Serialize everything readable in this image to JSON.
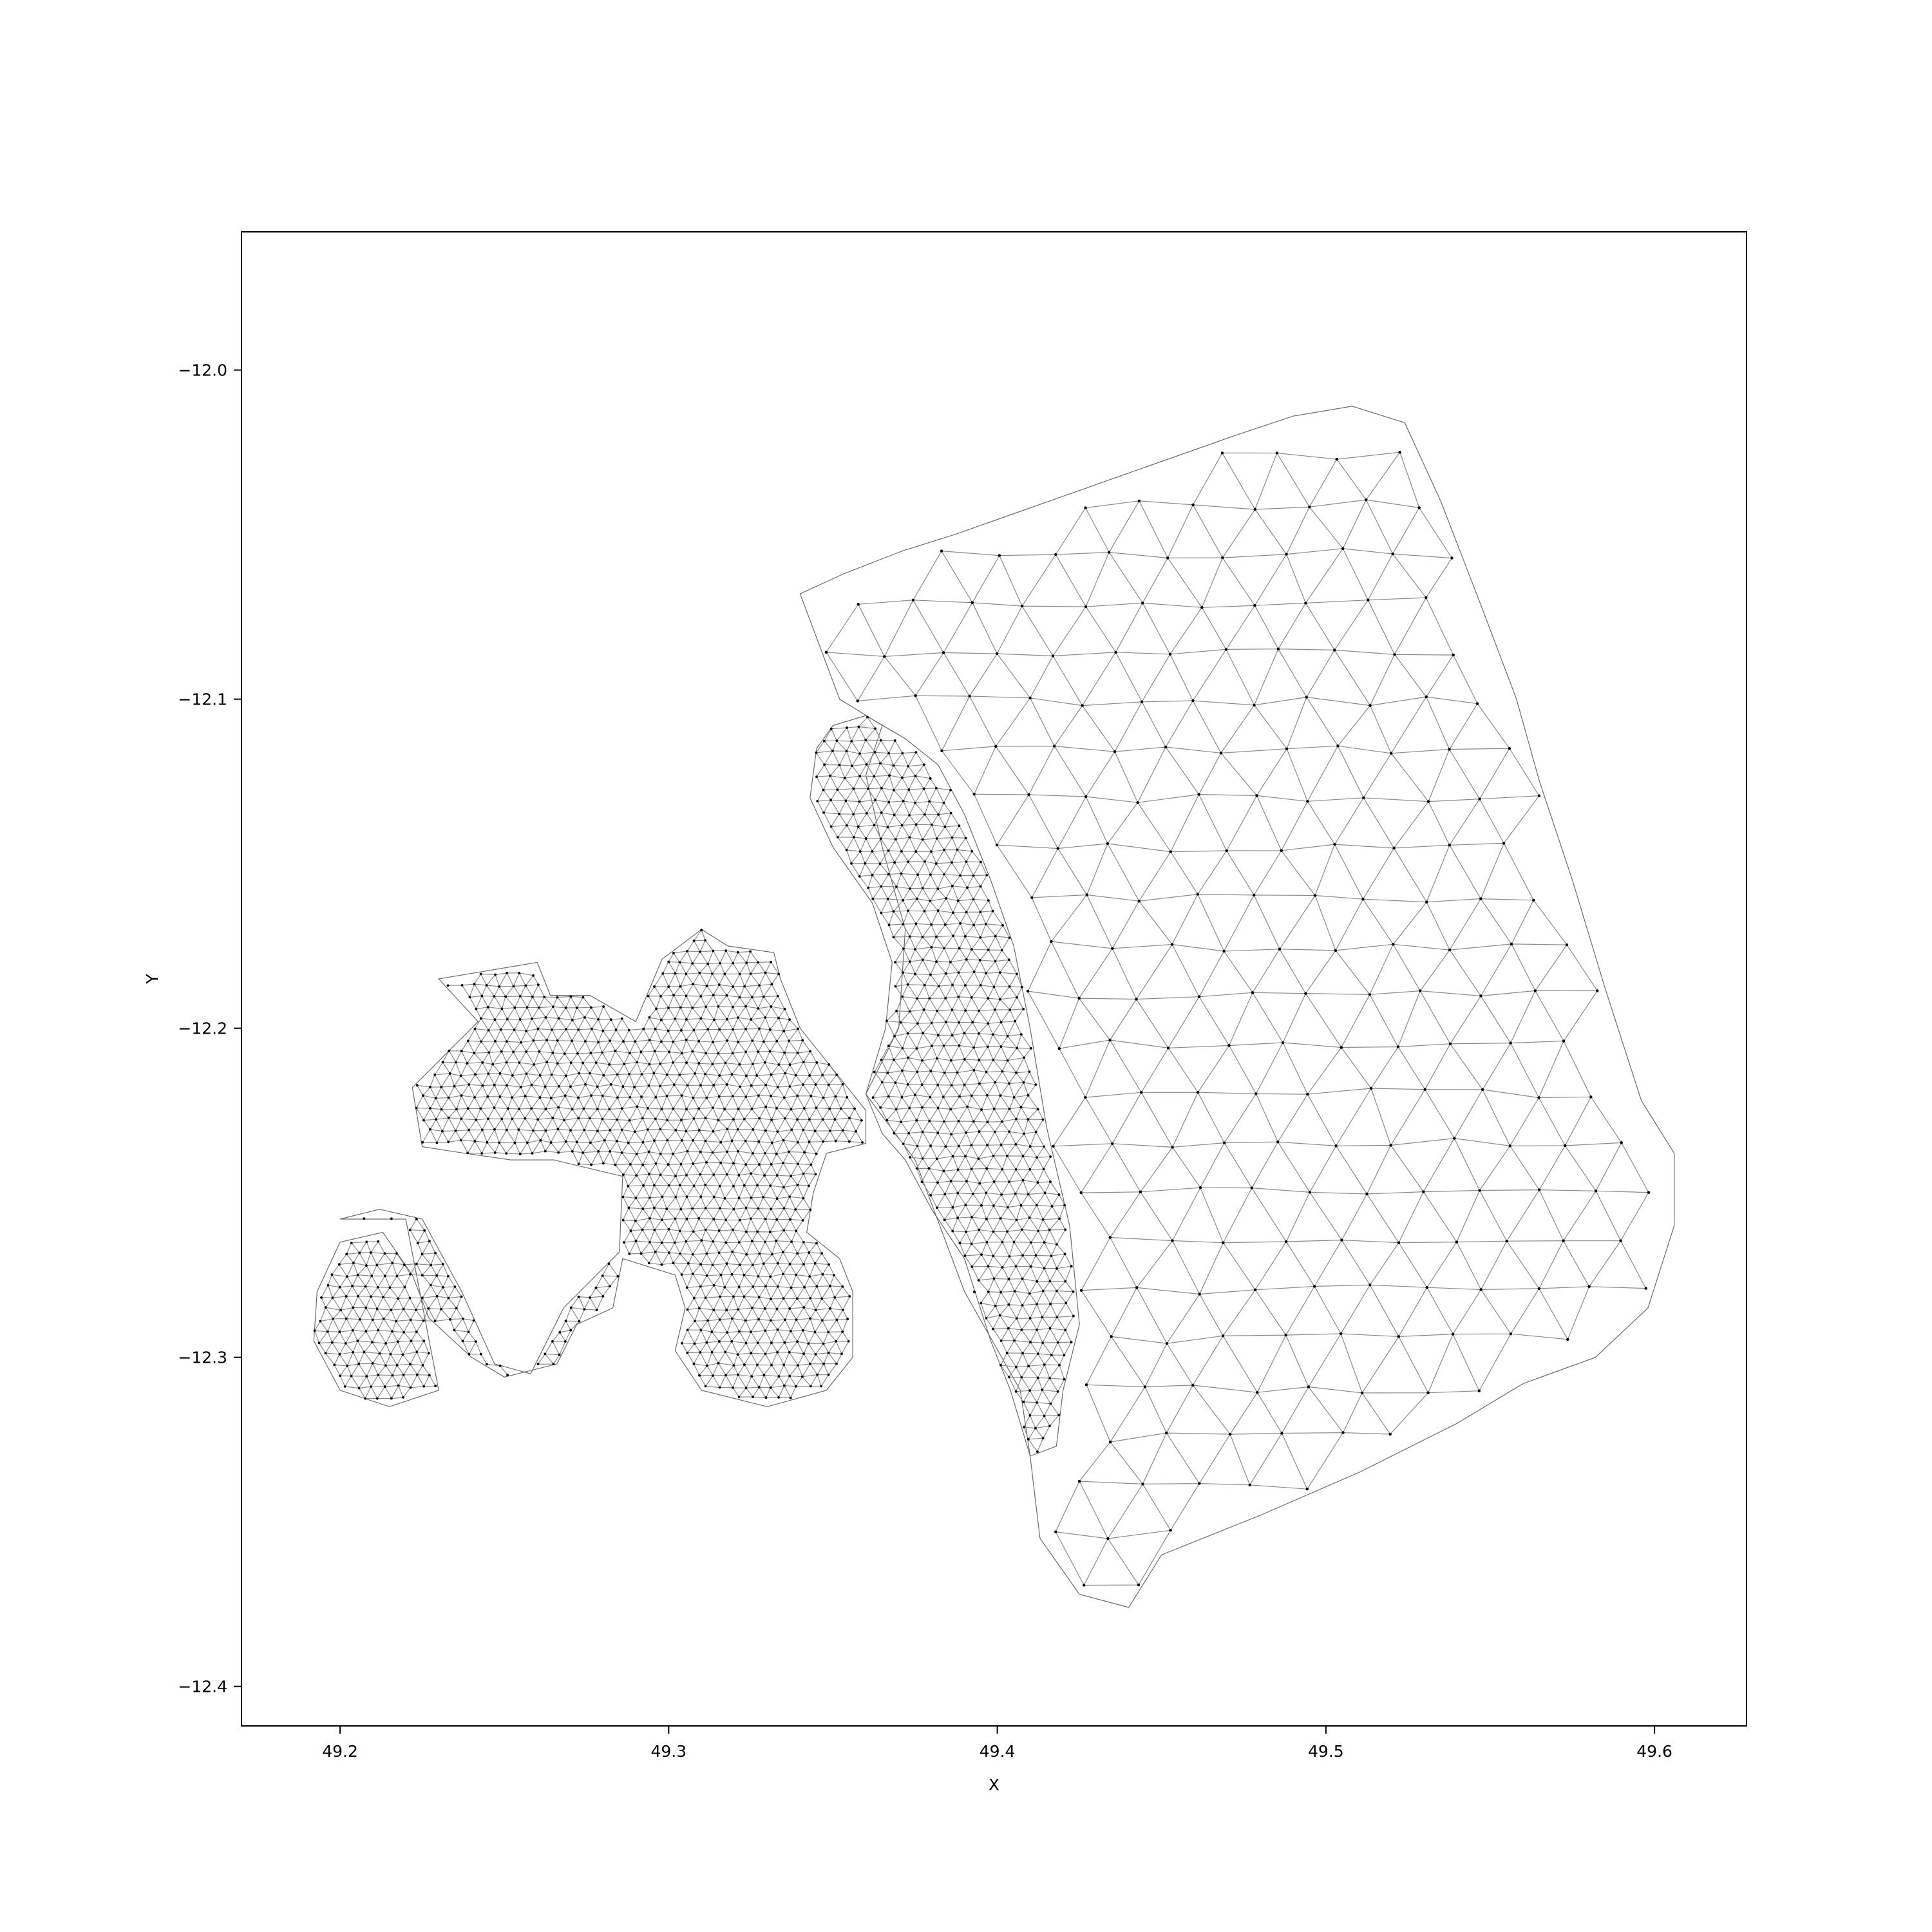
{
  "chart_data": {
    "type": "scatter",
    "title": "",
    "xlabel": "X",
    "ylabel": "Y",
    "xlim": [
      49.17,
      49.628
    ],
    "ylim": [
      -12.412,
      -11.958
    ],
    "x_ticks": [
      {
        "value": 49.2,
        "label": "49.2"
      },
      {
        "value": 49.3,
        "label": "49.3"
      },
      {
        "value": 49.4,
        "label": "49.4"
      },
      {
        "value": 49.5,
        "label": "49.5"
      },
      {
        "value": 49.6,
        "label": "49.6"
      }
    ],
    "y_ticks": [
      {
        "value": -12.0,
        "label": "−12.0"
      },
      {
        "value": -12.1,
        "label": "−12.1"
      },
      {
        "value": -12.2,
        "label": "−12.2"
      },
      {
        "value": -12.3,
        "label": "−12.3"
      },
      {
        "value": -12.4,
        "label": "−12.4"
      }
    ],
    "grid": false,
    "legend": false,
    "mesh": {
      "description_of_regions": "triangular mesh nodes and edges",
      "coarse_region_outline": [
        [
          49.34,
          -12.068
        ],
        [
          49.353,
          -12.062
        ],
        [
          49.371,
          -12.055
        ],
        [
          49.387,
          -12.05
        ],
        [
          49.404,
          -12.044
        ],
        [
          49.421,
          -12.038
        ],
        [
          49.438,
          -12.032
        ],
        [
          49.455,
          -12.026
        ],
        [
          49.472,
          -12.02
        ],
        [
          49.49,
          -12.014
        ],
        [
          49.508,
          -12.011
        ],
        [
          49.524,
          -12.016
        ],
        [
          49.535,
          -12.04
        ],
        [
          49.547,
          -12.071
        ],
        [
          49.558,
          -12.1
        ],
        [
          49.565,
          -12.125
        ],
        [
          49.575,
          -12.155
        ],
        [
          49.585,
          -12.188
        ],
        [
          49.596,
          -12.222
        ],
        [
          49.606,
          -12.238
        ],
        [
          49.606,
          -12.26
        ],
        [
          49.598,
          -12.285
        ],
        [
          49.582,
          -12.3
        ],
        [
          49.56,
          -12.308
        ],
        [
          49.54,
          -12.32
        ],
        [
          49.51,
          -12.335
        ],
        [
          49.48,
          -12.348
        ],
        [
          49.45,
          -12.36
        ],
        [
          49.44,
          -12.376
        ],
        [
          49.425,
          -12.372
        ],
        [
          49.413,
          -12.355
        ],
        [
          49.41,
          -12.33
        ],
        [
          49.407,
          -12.31
        ],
        [
          49.39,
          -12.28
        ],
        [
          49.375,
          -12.24
        ],
        [
          49.36,
          -12.22
        ],
        [
          49.37,
          -12.2
        ],
        [
          49.372,
          -12.17
        ],
        [
          49.365,
          -12.145
        ],
        [
          49.36,
          -12.123
        ],
        [
          49.365,
          -12.108
        ],
        [
          49.352,
          -12.1
        ],
        [
          49.34,
          -12.068
        ]
      ],
      "fine_region_east_outline": [
        [
          49.35,
          -12.108
        ],
        [
          49.36,
          -12.105
        ],
        [
          49.372,
          -12.112
        ],
        [
          49.382,
          -12.12
        ],
        [
          49.39,
          -12.135
        ],
        [
          49.398,
          -12.155
        ],
        [
          49.405,
          -12.175
        ],
        [
          49.41,
          -12.2
        ],
        [
          49.415,
          -12.23
        ],
        [
          49.422,
          -12.26
        ],
        [
          49.425,
          -12.29
        ],
        [
          49.42,
          -12.31
        ],
        [
          49.418,
          -12.327
        ],
        [
          49.41,
          -12.33
        ],
        [
          49.404,
          -12.31
        ],
        [
          49.398,
          -12.295
        ],
        [
          49.39,
          -12.27
        ],
        [
          49.38,
          -12.255
        ],
        [
          49.372,
          -12.24
        ],
        [
          49.365,
          -12.232
        ],
        [
          49.36,
          -12.22
        ],
        [
          49.366,
          -12.2
        ],
        [
          49.368,
          -12.18
        ],
        [
          49.362,
          -12.162
        ],
        [
          49.35,
          -12.145
        ],
        [
          49.343,
          -12.13
        ],
        [
          49.345,
          -12.115
        ],
        [
          49.35,
          -12.108
        ]
      ],
      "fine_region_central_outline": [
        [
          49.298,
          -12.179
        ],
        [
          49.31,
          -12.17
        ],
        [
          49.318,
          -12.175
        ],
        [
          49.332,
          -12.177
        ],
        [
          49.334,
          -12.185
        ],
        [
          49.34,
          -12.2
        ],
        [
          49.352,
          -12.215
        ],
        [
          49.36,
          -12.225
        ],
        [
          49.36,
          -12.235
        ],
        [
          49.348,
          -12.238
        ],
        [
          49.344,
          -12.25
        ],
        [
          49.342,
          -12.262
        ],
        [
          49.352,
          -12.27
        ],
        [
          49.356,
          -12.28
        ],
        [
          49.356,
          -12.3
        ],
        [
          49.348,
          -12.31
        ],
        [
          49.33,
          -12.315
        ],
        [
          49.31,
          -12.31
        ],
        [
          49.302,
          -12.298
        ],
        [
          49.305,
          -12.285
        ],
        [
          49.302,
          -12.275
        ],
        [
          49.286,
          -12.27
        ],
        [
          49.283,
          -12.285
        ],
        [
          49.272,
          -12.29
        ],
        [
          49.266,
          -12.302
        ],
        [
          49.25,
          -12.306
        ],
        [
          49.24,
          -12.3
        ],
        [
          49.227,
          -12.288
        ],
        [
          49.222,
          -12.275
        ],
        [
          49.213,
          -12.262
        ],
        [
          49.2,
          -12.265
        ],
        [
          49.193,
          -12.28
        ],
        [
          49.192,
          -12.295
        ],
        [
          49.2,
          -12.31
        ],
        [
          49.215,
          -12.315
        ],
        [
          49.23,
          -12.31
        ],
        [
          49.22,
          -12.258
        ],
        [
          49.2,
          -12.258
        ],
        [
          49.212,
          -12.255
        ],
        [
          49.225,
          -12.258
        ],
        [
          49.237,
          -12.28
        ],
        [
          49.247,
          -12.302
        ],
        [
          49.258,
          -12.305
        ],
        [
          49.268,
          -12.285
        ],
        [
          49.285,
          -12.268
        ],
        [
          49.286,
          -12.245
        ],
        [
          49.265,
          -12.24
        ],
        [
          49.252,
          -12.24
        ],
        [
          49.238,
          -12.238
        ],
        [
          49.225,
          -12.236
        ],
        [
          49.222,
          -12.218
        ],
        [
          49.242,
          -12.198
        ],
        [
          49.23,
          -12.185
        ],
        [
          49.26,
          -12.18
        ],
        [
          49.264,
          -12.19
        ],
        [
          49.276,
          -12.19
        ],
        [
          49.29,
          -12.198
        ],
        [
          49.298,
          -12.179
        ]
      ]
    }
  }
}
